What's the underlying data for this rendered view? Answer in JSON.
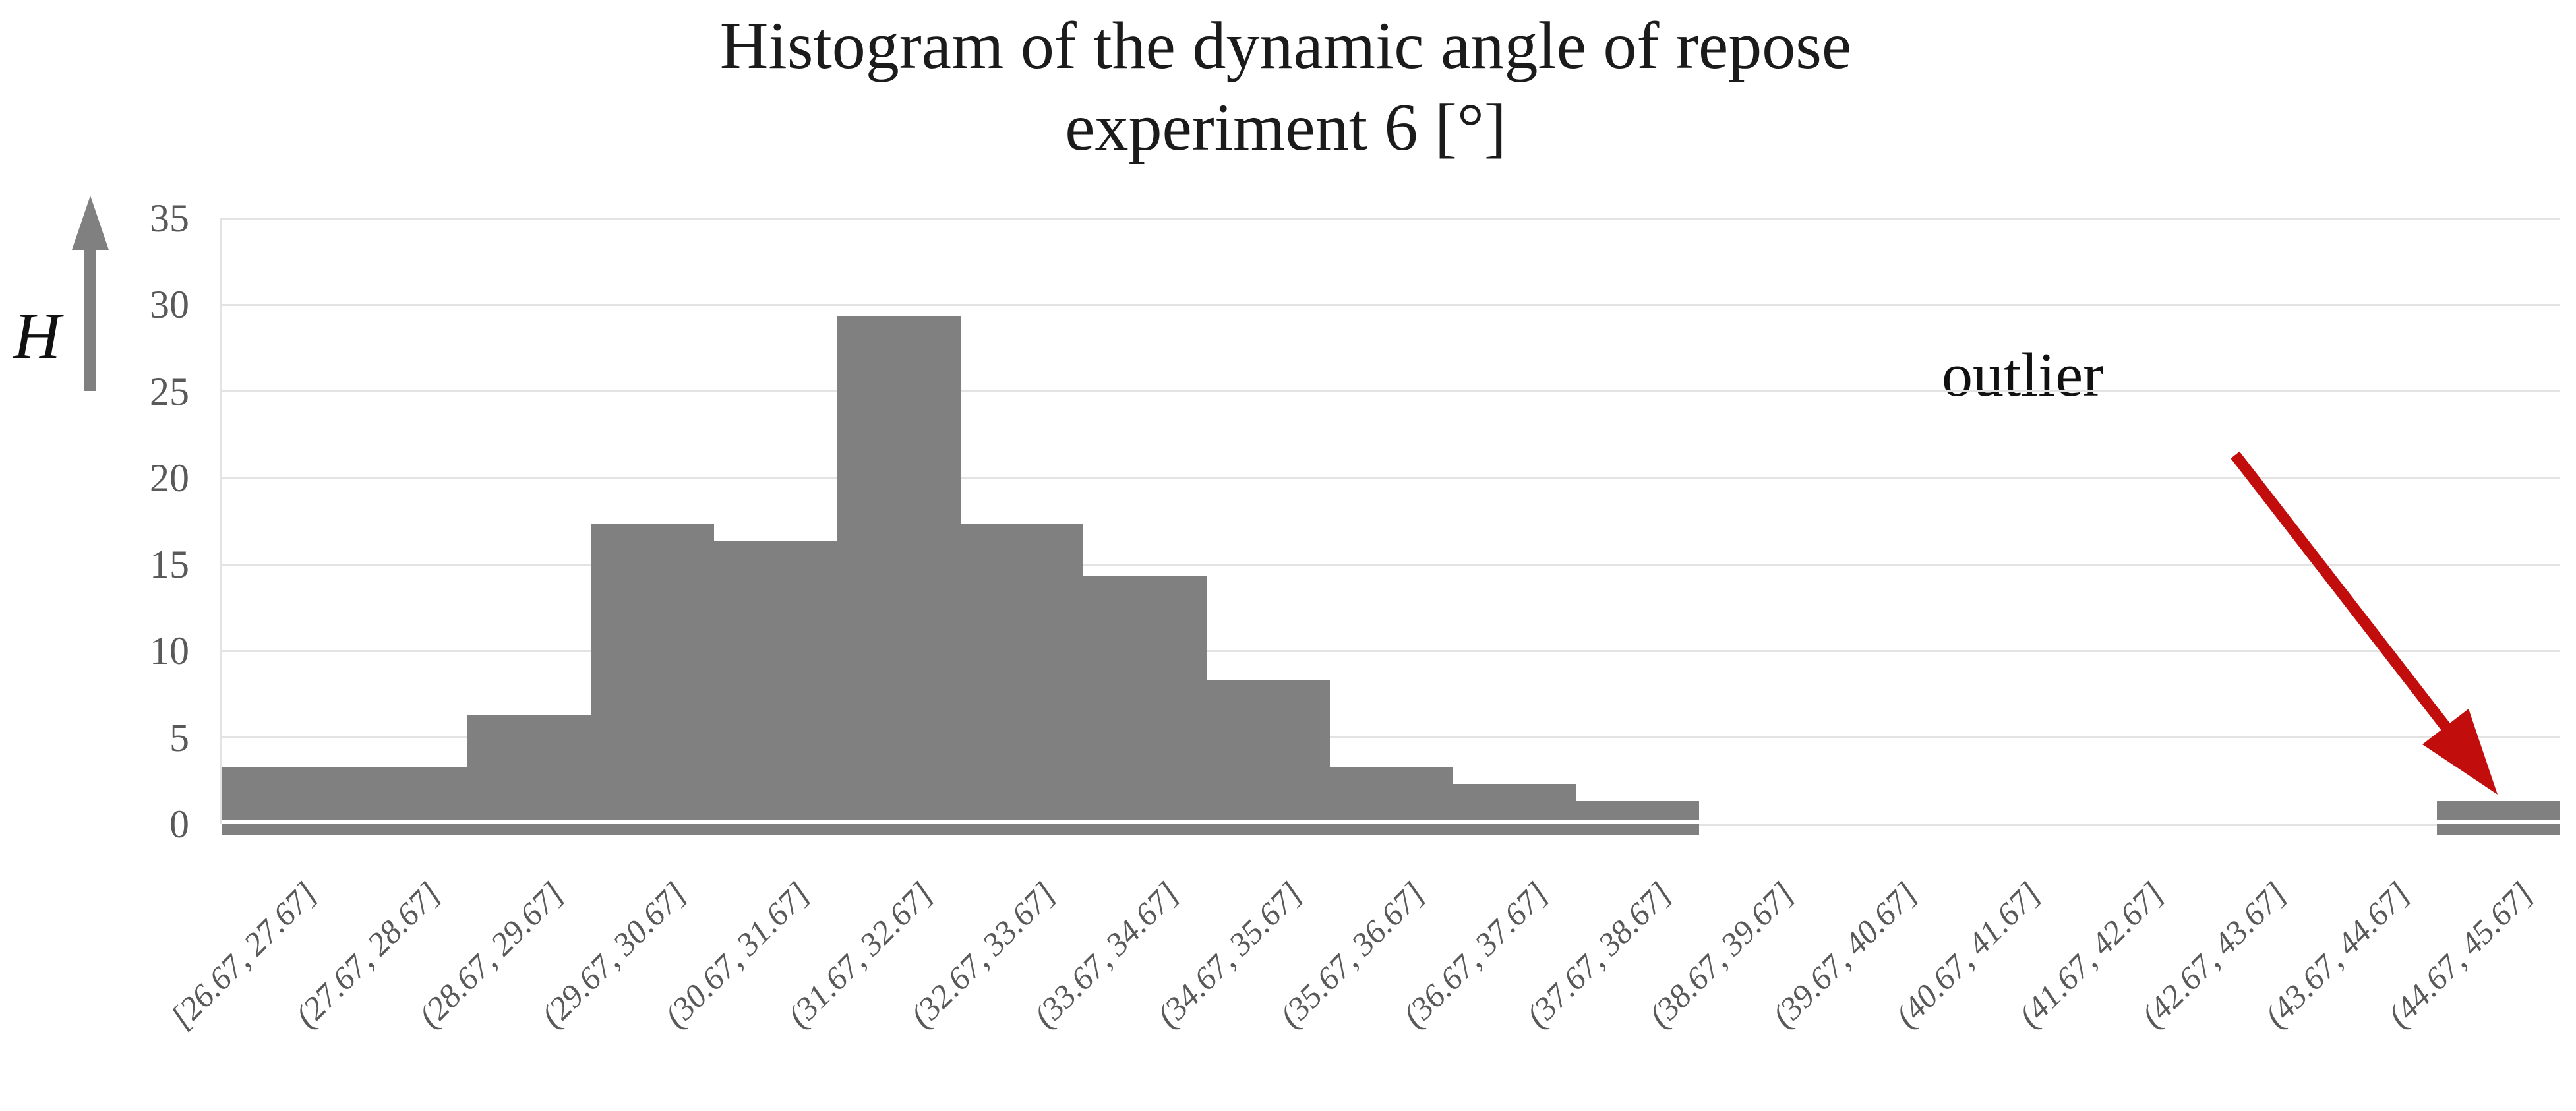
{
  "chart_data": {
    "type": "bar",
    "title": "Histogram of the dynamic angle of repose",
    "subtitle": "experiment 6 [°]",
    "ylabel": "H",
    "xlabel": "",
    "categories": [
      "[26.67, 27.67]",
      "(27.67, 28.67]",
      "(28.67, 29.67]",
      "(29.67, 30.67]",
      "(30.67, 31.67]",
      "(31.67, 32.67]",
      "(32.67, 33.67]",
      "(33.67, 34.67]",
      "(34.67, 35.67]",
      "(35.67, 36.67]",
      "(36.67, 37.67]",
      "(37.67, 38.67]",
      "(38.67, 39.67]",
      "(39.67, 40.67]",
      "(40.67, 41.67]",
      "(41.67, 42.67]",
      "(42.67, 43.67]",
      "(43.67, 44.67]",
      "(44.67, 45.67]"
    ],
    "values": [
      3.33,
      3.33,
      6.33,
      17.33,
      16.33,
      29.33,
      17.33,
      14.33,
      8.33,
      3.33,
      2.33,
      1.33,
      0,
      0,
      0,
      0,
      0,
      0,
      1.33
    ],
    "ylim": [
      0,
      35
    ],
    "yticks": [
      0,
      5,
      10,
      15,
      20,
      25,
      30,
      35
    ],
    "grid": true,
    "legend": false,
    "bar_color": "#808080",
    "gridline_color": "#e3e3e3",
    "axis_tick_color": "#595959",
    "annotation": {
      "text": "outlier",
      "text_color": "#111111",
      "arrow_color": "#c20d0d"
    },
    "y_axis_arrow_color": "#808080"
  }
}
